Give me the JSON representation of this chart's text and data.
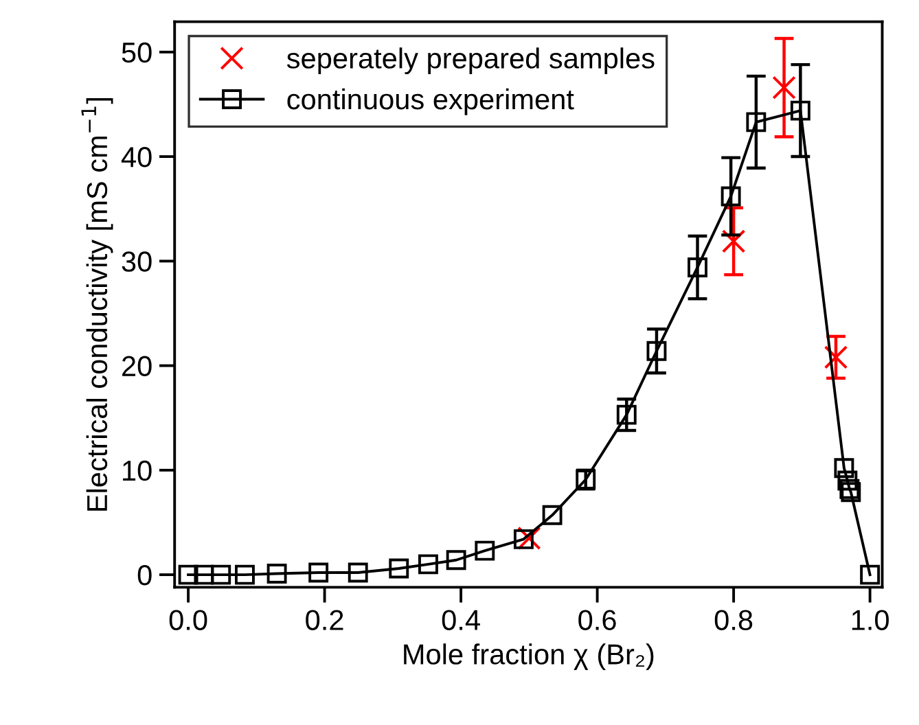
{
  "chart_data": {
    "type": "line",
    "xlabel": "Mole fraction χ (Br₂)",
    "ylabel": "Electrical conductivity [mS cm$^{−1}$]",
    "xlim": [
      -0.02,
      1.018
    ],
    "ylim": [
      -1.2,
      52.9
    ],
    "xticks": [
      {
        "value": 0,
        "label": "0.0"
      },
      0.2,
      0.4,
      0.6,
      0.8,
      {
        "value": 1,
        "label": "1.0"
      }
    ],
    "yticks": [
      0,
      10,
      20,
      30,
      40,
      50
    ],
    "grid": false,
    "legend": "top left",
    "series": [
      {
        "name": "seperately prepared samples",
        "type": "scatter",
        "marker": "cross",
        "color": "#ff0000",
        "x": [
          0.5,
          0.8,
          0.874,
          0.95
        ],
        "values": [
          3.5,
          31.9,
          46.6,
          20.8
        ],
        "errors": [
          null,
          3.2,
          4.7,
          2.0
        ]
      },
      {
        "name": "continuous experiment",
        "marker": "square",
        "line_style": "solid",
        "color": "#000000",
        "x": [
          0,
          0.023,
          0.048,
          0.083,
          0.13,
          0.191,
          0.249,
          0.309,
          0.352,
          0.393,
          0.435,
          0.492,
          0.534,
          0.583,
          0.643,
          0.687,
          0.747,
          0.796,
          0.833,
          0.898,
          0.962,
          0.967,
          0.97,
          0.972,
          1.0
        ],
        "values": [
          0,
          0,
          0,
          0,
          0.1,
          0.2,
          0.2,
          0.6,
          1.0,
          1.4,
          2.3,
          3.4,
          5.7,
          9.1,
          15.3,
          21.4,
          29.4,
          36.2,
          43.3,
          44.4,
          10.2,
          9.0,
          8.2,
          7.9,
          0
        ],
        "errors": [
          null,
          null,
          null,
          null,
          null,
          null,
          null,
          null,
          null,
          null,
          null,
          null,
          null,
          0.9,
          1.5,
          2.1,
          3.0,
          3.7,
          4.4,
          4.4,
          null,
          null,
          null,
          null,
          null
        ]
      }
    ]
  }
}
